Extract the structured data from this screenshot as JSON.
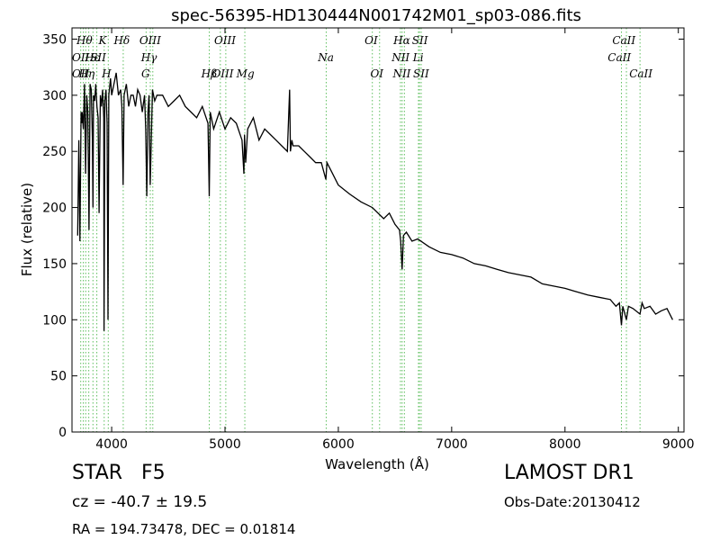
{
  "chart_data": {
    "type": "line",
    "title": "spec-56395-HD130444N001742M01_sp03-086.fits",
    "xlabel": "Wavelength (Å)",
    "ylabel": "Flux (relative)",
    "xlim": [
      3650,
      9050
    ],
    "ylim": [
      0,
      360
    ],
    "xticks": [
      4000,
      5000,
      6000,
      7000,
      8000,
      9000
    ],
    "yticks": [
      0,
      50,
      100,
      150,
      200,
      250,
      300,
      350
    ],
    "grid": false,
    "series": [
      {
        "x": [
          3700,
          3710,
          3720,
          3730,
          3735,
          3740,
          3750,
          3760,
          3770,
          3780,
          3790,
          3800,
          3810,
          3820,
          3830,
          3835,
          3840,
          3850,
          3860,
          3870,
          3880,
          3889,
          3900,
          3910,
          3920,
          3930,
          3933,
          3940,
          3950,
          3960,
          3968,
          3975,
          3990,
          4000,
          4020,
          4040,
          4060,
          4080,
          4090,
          4101,
          4110,
          4130,
          4150,
          4170,
          4190,
          4210,
          4230,
          4250,
          4270,
          4290,
          4300,
          4310,
          4320,
          4330,
          4340,
          4350,
          4360,
          4380,
          4400,
          4450,
          4500,
          4550,
          4600,
          4650,
          4700,
          4750,
          4800,
          4850,
          4861,
          4870,
          4900,
          4950,
          5000,
          5050,
          5100,
          5150,
          5167,
          5172,
          5183,
          5200,
          5250,
          5300,
          5350,
          5400,
          5450,
          5500,
          5550,
          5570,
          5577,
          5590,
          5600,
          5650,
          5700,
          5750,
          5800,
          5850,
          5890,
          5900,
          5950,
          6000,
          6100,
          6200,
          6300,
          6400,
          6450,
          6500,
          6540,
          6550,
          6563,
          6575,
          6600,
          6650,
          6700,
          6800,
          6900,
          7000,
          7100,
          7200,
          7300,
          7400,
          7500,
          7600,
          7700,
          7800,
          7900,
          8000,
          8100,
          8200,
          8300,
          8400,
          8450,
          8480,
          8498,
          8510,
          8542,
          8560,
          8600,
          8662,
          8680,
          8700,
          8750,
          8800,
          8850,
          8900,
          8950
        ],
        "values": [
          175,
          260,
          170,
          285,
          275,
          285,
          270,
          310,
          230,
          300,
          285,
          180,
          310,
          305,
          260,
          200,
          300,
          295,
          310,
          290,
          280,
          195,
          300,
          290,
          305,
          280,
          90,
          295,
          305,
          275,
          100,
          300,
          315,
          300,
          310,
          320,
          300,
          305,
          290,
          220,
          300,
          310,
          290,
          300,
          300,
          290,
          305,
          300,
          285,
          300,
          270,
          210,
          285,
          300,
          220,
          260,
          305,
          295,
          300,
          300,
          290,
          295,
          300,
          290,
          285,
          280,
          290,
          275,
          210,
          285,
          270,
          285,
          270,
          280,
          275,
          260,
          230,
          265,
          240,
          270,
          280,
          260,
          270,
          265,
          260,
          255,
          250,
          305,
          250,
          260,
          255,
          255,
          250,
          245,
          240,
          240,
          225,
          240,
          230,
          220,
          212,
          205,
          200,
          190,
          195,
          185,
          180,
          170,
          145,
          175,
          178,
          170,
          172,
          165,
          160,
          158,
          155,
          150,
          148,
          145,
          142,
          140,
          138,
          132,
          130,
          128,
          125,
          122,
          120,
          118,
          112,
          115,
          95,
          112,
          100,
          112,
          110,
          105,
          115,
          110,
          112,
          105,
          108,
          110,
          100
        ]
      }
    ],
    "lines": [
      {
        "wavelength": 3727,
        "labels": [
          "OII"
        ],
        "color": "#5fbf5f"
      },
      {
        "wavelength": 3750,
        "labels": [
          "Hθ"
        ],
        "color": "#5fbf5f"
      },
      {
        "wavelength": 3771,
        "labels": [
          "Hη"
        ],
        "color": "#5fbf5f"
      },
      {
        "wavelength": 3798,
        "labels": [
          "OII"
        ],
        "color": "#5fbf5f"
      },
      {
        "wavelength": 3835,
        "labels": [
          "Hε"
        ],
        "color": "#5fbf5f"
      },
      {
        "wavelength": 3869,
        "labels": [
          "SII"
        ],
        "color": "#5fbf5f"
      },
      {
        "wavelength": 3934,
        "labels": [
          "K"
        ],
        "color": "#5fbf5f"
      },
      {
        "wavelength": 3970,
        "labels": [
          "H"
        ],
        "color": "#5fbf5f"
      },
      {
        "wavelength": 4102,
        "labels": [
          "Hδ"
        ],
        "color": "#5fbf5f"
      },
      {
        "wavelength": 4304,
        "labels": [
          "G"
        ],
        "color": "#5fbf5f"
      },
      {
        "wavelength": 4341,
        "labels": [
          "Hγ"
        ],
        "color": "#5fbf5f"
      },
      {
        "wavelength": 4363,
        "labels": [
          "OIII"
        ],
        "color": "#5fbf5f"
      },
      {
        "wavelength": 4861,
        "labels": [
          "Hβ"
        ],
        "color": "#5fbf5f"
      },
      {
        "wavelength": 4959,
        "labels": [
          "OIII"
        ],
        "color": "#5fbf5f"
      },
      {
        "wavelength": 5007,
        "labels": [
          "OIII"
        ],
        "color": "#5fbf5f"
      },
      {
        "wavelength": 5175,
        "labels": [
          "Mg"
        ],
        "color": "#5fbf5f"
      },
      {
        "wavelength": 5893,
        "labels": [
          "Na"
        ],
        "color": "#5fbf5f"
      },
      {
        "wavelength": 6300,
        "labels": [
          "OI"
        ],
        "color": "#5fbf5f"
      },
      {
        "wavelength": 6364,
        "labels": [
          "OI"
        ],
        "color": "#5fbf5f"
      },
      {
        "wavelength": 6548,
        "labels": [
          "NII"
        ],
        "color": "#5fbf5f"
      },
      {
        "wavelength": 6563,
        "labels": [
          "Hα"
        ],
        "color": "#5fbf5f"
      },
      {
        "wavelength": 6583,
        "labels": [
          "NII"
        ],
        "color": "#5fbf5f"
      },
      {
        "wavelength": 6707,
        "labels": [
          "Li"
        ],
        "color": "#5fbf5f"
      },
      {
        "wavelength": 6716,
        "labels": [
          "SII"
        ],
        "color": "#5fbf5f"
      },
      {
        "wavelength": 6731,
        "labels": [
          "SII"
        ],
        "color": "#5fbf5f"
      },
      {
        "wavelength": 8498,
        "labels": [
          "CaII"
        ],
        "color": "#5fbf5f"
      },
      {
        "wavelength": 8542,
        "labels": [
          "CaII"
        ],
        "color": "#5fbf5f"
      },
      {
        "wavelength": 8662,
        "labels": [
          "CaII"
        ],
        "color": "#5fbf5f"
      }
    ],
    "line_labels": [
      {
        "text": "Hθ",
        "wavelength": 3760,
        "row": 1
      },
      {
        "text": "K",
        "wavelength": 3920,
        "row": 1
      },
      {
        "text": "Hδ",
        "wavelength": 4090,
        "row": 1
      },
      {
        "text": "OIII",
        "wavelength": 4340,
        "row": 1
      },
      {
        "text": "OIII",
        "wavelength": 5000,
        "row": 1
      },
      {
        "text": "OI",
        "wavelength": 6290,
        "row": 1
      },
      {
        "text": "Hα",
        "wavelength": 6560,
        "row": 1
      },
      {
        "text": "SII",
        "wavelength": 6720,
        "row": 1
      },
      {
        "text": "CaII",
        "wavelength": 8520,
        "row": 1
      },
      {
        "text": "OII",
        "wavelength": 3727,
        "row": 2
      },
      {
        "text": "Hε",
        "wavelength": 3830,
        "row": 2
      },
      {
        "text": "SII",
        "wavelength": 3880,
        "row": 2
      },
      {
        "text": "Hγ",
        "wavelength": 4330,
        "row": 2
      },
      {
        "text": "Na",
        "wavelength": 5890,
        "row": 2
      },
      {
        "text": "NII",
        "wavelength": 6550,
        "row": 2
      },
      {
        "text": "Li",
        "wavelength": 6705,
        "row": 2
      },
      {
        "text": "CaII",
        "wavelength": 8480,
        "row": 2
      },
      {
        "text": "OII",
        "wavelength": 3727,
        "row": 3
      },
      {
        "text": "Hη",
        "wavelength": 3780,
        "row": 3
      },
      {
        "text": "H",
        "wavelength": 3955,
        "row": 3
      },
      {
        "text": "G",
        "wavelength": 4300,
        "row": 3
      },
      {
        "text": "Hβ",
        "wavelength": 4860,
        "row": 3
      },
      {
        "text": "OIII",
        "wavelength": 4980,
        "row": 3
      },
      {
        "text": "Mg",
        "wavelength": 5180,
        "row": 3
      },
      {
        "text": "OI",
        "wavelength": 6340,
        "row": 3
      },
      {
        "text": "NII",
        "wavelength": 6560,
        "row": 3
      },
      {
        "text": "SII",
        "wavelength": 6730,
        "row": 3
      },
      {
        "text": "CaII",
        "wavelength": 8670,
        "row": 3
      }
    ]
  },
  "footer": {
    "object_class": "STAR",
    "subclass": "F5",
    "survey": "LAMOST DR1",
    "redshift": "cz = -40.7  ± 19.5",
    "obs_date": "Obs-Date:20130412",
    "coords": "RA = 194.73478, DEC = 0.01814"
  }
}
